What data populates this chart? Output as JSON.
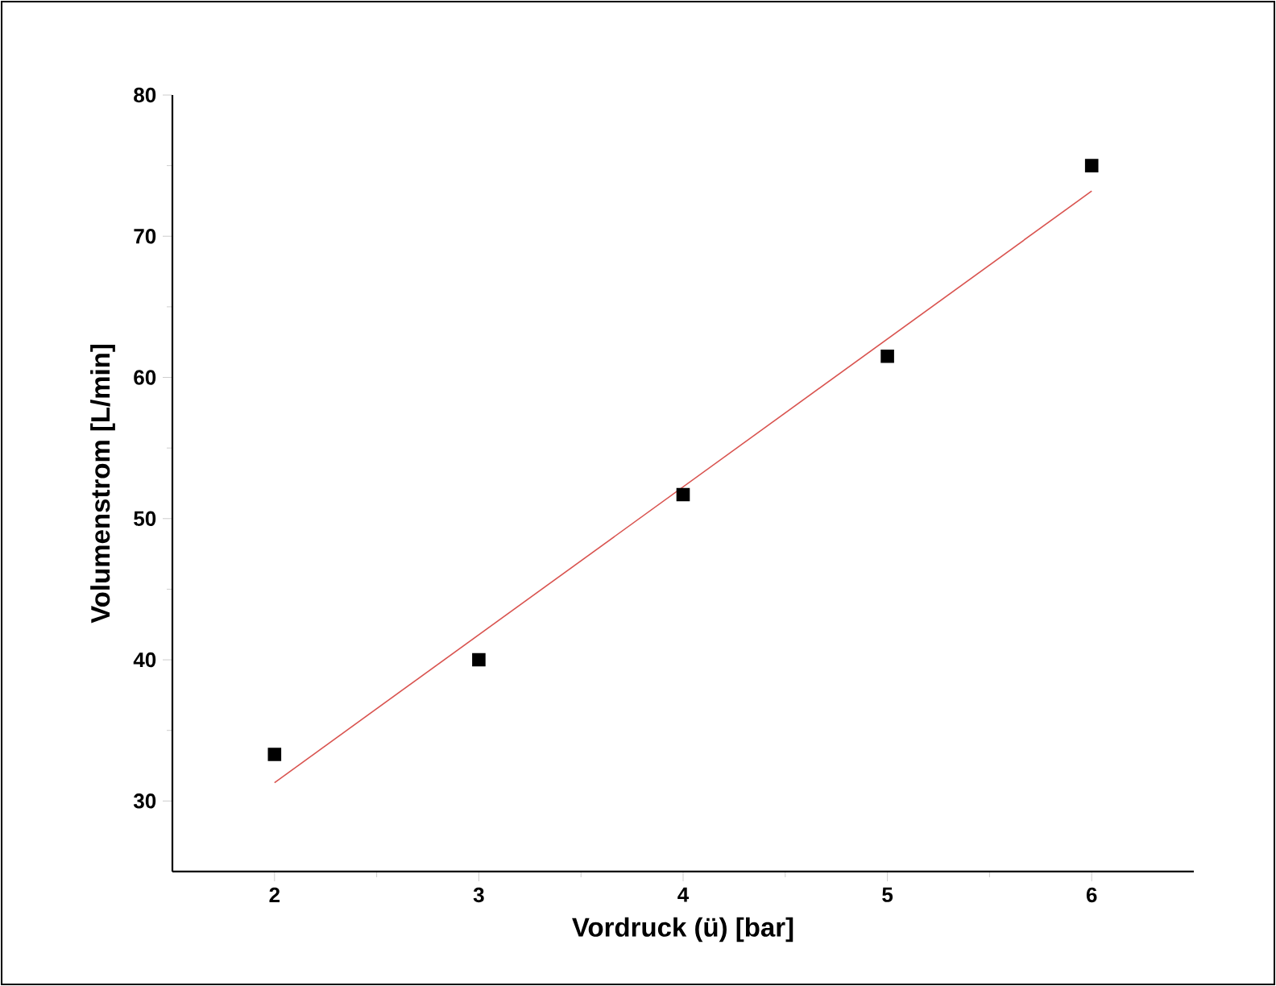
{
  "chart_data": {
    "type": "scatter",
    "xlabel": "Vordruck (ü) [bar]",
    "ylabel": "Volumenstrom [L/min]",
    "xlim": [
      1.5,
      6.5
    ],
    "xticks": [
      2,
      3,
      4,
      5,
      6
    ],
    "ylim": [
      25,
      80
    ],
    "yticks": [
      30,
      40,
      50,
      60,
      70,
      80
    ],
    "grid": false,
    "series": [
      {
        "marker": "square",
        "color": "#000000",
        "x": [
          2,
          3,
          4,
          5,
          6
        ],
        "values": [
          33.3,
          40,
          51.7,
          61.5,
          75
        ]
      },
      {
        "type": "line",
        "marker": "none",
        "color": "#d9534f",
        "x": [
          2,
          6
        ],
        "values": [
          31.3,
          73.2
        ]
      }
    ]
  }
}
